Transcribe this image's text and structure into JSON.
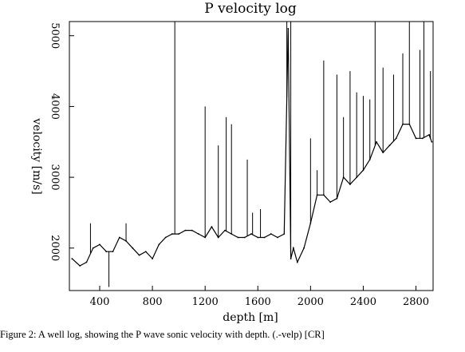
{
  "chart_data": {
    "type": "line",
    "title": "P velocity log",
    "xlabel": "depth [m]",
    "ylabel": "velocity [m/s]",
    "xlim": [
      170,
      2930
    ],
    "ylim": [
      1400,
      5200
    ],
    "x_ticks": [
      400,
      800,
      1200,
      1600,
      2000,
      2400,
      2800
    ],
    "y_ticks": [
      2000,
      3000,
      4000,
      5000
    ],
    "grid": false,
    "legend": "none",
    "line_color": "#000000",
    "series": [
      {
        "x": [
          190,
          250,
          300,
          350,
          400,
          450,
          500,
          550,
          600,
          650,
          700,
          750,
          800,
          850,
          900,
          950,
          1000,
          1050,
          1100,
          1150,
          1200,
          1250,
          1300,
          1350,
          1400,
          1450,
          1500,
          1550,
          1600,
          1650,
          1700,
          1750,
          1800,
          1830,
          1850,
          1870,
          1900,
          1950,
          2000,
          2050,
          2100,
          2150,
          2200,
          2250,
          2300,
          2350,
          2400,
          2450,
          2500,
          2550,
          2600,
          2650,
          2700,
          2750,
          2800,
          2850,
          2900,
          2920
        ],
        "values": [
          1850,
          1750,
          1800,
          2000,
          2050,
          1950,
          1950,
          2150,
          2100,
          2000,
          1900,
          1950,
          1850,
          2050,
          2150,
          2200,
          2200,
          2250,
          2250,
          2200,
          2150,
          2300,
          2150,
          2250,
          2200,
          2150,
          2150,
          2200,
          2150,
          2150,
          2200,
          2150,
          2200,
          5100,
          1850,
          2000,
          1800,
          2000,
          2350,
          2750,
          2750,
          2650,
          2700,
          3000,
          2900,
          3000,
          3100,
          3250,
          3500,
          3350,
          3450,
          3550,
          3750,
          3750,
          3550,
          3550,
          3600,
          3500
        ]
      }
    ],
    "spikes": [
      {
        "x": 330,
        "y": 2350
      },
      {
        "x": 470,
        "y": 1450
      },
      {
        "x": 600,
        "y": 2350
      },
      {
        "x": 970,
        "y": 5200
      },
      {
        "x": 1200,
        "y": 4000
      },
      {
        "x": 1300,
        "y": 3450
      },
      {
        "x": 1360,
        "y": 3850
      },
      {
        "x": 1400,
        "y": 3750
      },
      {
        "x": 1520,
        "y": 3250
      },
      {
        "x": 1560,
        "y": 2500
      },
      {
        "x": 1620,
        "y": 2550
      },
      {
        "x": 1820,
        "y": 5200
      },
      {
        "x": 1850,
        "y": 5200
      },
      {
        "x": 2000,
        "y": 3550
      },
      {
        "x": 2050,
        "y": 3100
      },
      {
        "x": 2100,
        "y": 4650
      },
      {
        "x": 2200,
        "y": 4450
      },
      {
        "x": 2250,
        "y": 3850
      },
      {
        "x": 2300,
        "y": 4500
      },
      {
        "x": 2350,
        "y": 4200
      },
      {
        "x": 2400,
        "y": 4150
      },
      {
        "x": 2450,
        "y": 4100
      },
      {
        "x": 2490,
        "y": 5200
      },
      {
        "x": 2550,
        "y": 4550
      },
      {
        "x": 2630,
        "y": 4450
      },
      {
        "x": 2700,
        "y": 4750
      },
      {
        "x": 2750,
        "y": 5200
      },
      {
        "x": 2830,
        "y": 4800
      },
      {
        "x": 2860,
        "y": 5200
      },
      {
        "x": 2910,
        "y": 4500
      }
    ]
  },
  "caption": "Figure 2: A well log, showing the P wave sonic velocity with depth.   (.-velp) [CR]"
}
